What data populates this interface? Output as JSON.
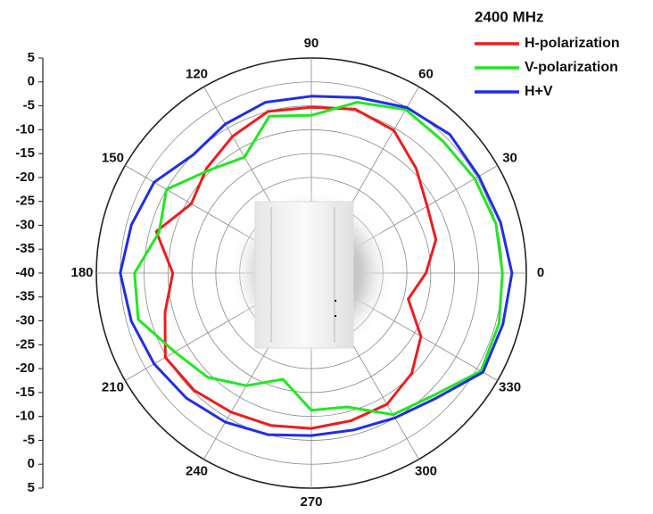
{
  "chart_data": {
    "type": "polar",
    "legend_title": "2400 MHz",
    "legend": "top-right",
    "grid": true,
    "rlim": [
      -40,
      5
    ],
    "rticks": [
      -40,
      -35,
      -30,
      -25,
      -20,
      -15,
      -10,
      -5,
      0,
      5
    ],
    "thetaticks": [
      0,
      30,
      60,
      90,
      120,
      150,
      180,
      210,
      240,
      270,
      300,
      330
    ],
    "theta": [
      0,
      15,
      30,
      45,
      60,
      75,
      90,
      105,
      120,
      135,
      150,
      165,
      180,
      195,
      210,
      225,
      240,
      255,
      270,
      285,
      300,
      315,
      330,
      345
    ],
    "series": [
      {
        "name": "H-polarization",
        "color": "#ee1c1c",
        "values": [
          -16,
          -13,
          -12,
          -9,
          -5.5,
          -4.5,
          -5.3,
          -5,
          -7,
          -9,
          -11,
          -6.4,
          -11,
          -8.3,
          -4.7,
          -5.3,
          -6.4,
          -7,
          -7.5,
          -8,
          -8.3,
          -10.3,
          -13.5,
          -19
        ]
      },
      {
        "name": "V-polarization",
        "color": "#22e622",
        "values": [
          0,
          0,
          -0.5,
          -1,
          -0.5,
          -3,
          -7,
          -6,
          -12,
          -9.6,
          -5,
          -7,
          -3,
          -2.5,
          -7,
          -9.2,
          -12.8,
          -17,
          -11.3,
          -11,
          -5.8,
          -3.8,
          1,
          0.7
        ]
      },
      {
        "name": "H+V",
        "color": "#1f2ee6",
        "values": [
          2,
          1,
          0.5,
          1,
          0,
          -2,
          -3,
          -3,
          -4,
          -5,
          -2,
          -1,
          0,
          -1,
          -2,
          -3,
          -4,
          -5,
          -6,
          -6,
          -5,
          -3,
          1.5,
          1.5
        ]
      }
    ]
  }
}
